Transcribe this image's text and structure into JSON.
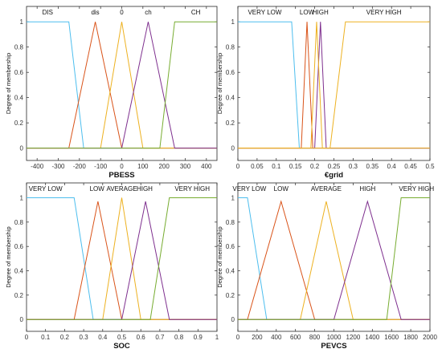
{
  "chart_data": [
    {
      "type": "line",
      "xlabel": "PBESS",
      "ylabel": "Degree of membership",
      "xlim": [
        -450,
        450
      ],
      "ylim": [
        0,
        1
      ],
      "xticks": [
        -400,
        -300,
        -200,
        -100,
        0,
        100,
        200,
        300,
        400
      ],
      "xtick_labels": [
        "-400",
        "-300",
        "-200",
        "-100",
        "0",
        "100",
        "200",
        "300",
        "400"
      ],
      "yticks": [
        0,
        0.2,
        0.4,
        0.6,
        0.8,
        1
      ],
      "ytick_labels": [
        "0",
        "0.2",
        "0.4",
        "0.6",
        "0.8",
        "1"
      ],
      "series": [
        {
          "name": "DIS",
          "color": "#4dbeee",
          "x": [
            -450,
            -250,
            -180
          ],
          "y": [
            1,
            1,
            0
          ],
          "label_x": -350
        },
        {
          "name": "dis",
          "color": "#d95319",
          "x": [
            -250,
            -125,
            0
          ],
          "y": [
            0,
            1,
            0
          ],
          "label_x": -125
        },
        {
          "name": "0",
          "color": "#edb120",
          "x": [
            -100,
            0,
            100
          ],
          "y": [
            0,
            1,
            0
          ],
          "label_x": 0
        },
        {
          "name": "ch",
          "color": "#7e2f8e",
          "x": [
            0,
            125,
            250
          ],
          "y": [
            0,
            1,
            0
          ],
          "label_x": 125
        },
        {
          "name": "CH",
          "color": "#77ac30",
          "x": [
            180,
            250,
            450
          ],
          "y": [
            0,
            1,
            1
          ],
          "label_x": 350
        }
      ]
    },
    {
      "type": "line",
      "xlabel": "€grid",
      "ylabel": "Degree of membership",
      "xlim": [
        0,
        0.5
      ],
      "ylim": [
        0,
        1
      ],
      "xticks": [
        0,
        0.05,
        0.1,
        0.15,
        0.2,
        0.25,
        0.3,
        0.35,
        0.4,
        0.45,
        0.5
      ],
      "xtick_labels": [
        "0",
        "0.05",
        "0.1",
        "0.15",
        "0.2",
        "0.25",
        "0.3",
        "0.35",
        "0.4",
        "0.45",
        "0.5"
      ],
      "yticks": [
        0,
        0.2,
        0.4,
        0.6,
        0.8,
        1
      ],
      "ytick_labels": [
        "0",
        "0.2",
        "0.4",
        "0.6",
        "0.8",
        "1"
      ],
      "series": [
        {
          "name": "VERY LOW",
          "color": "#4dbeee",
          "x": [
            0,
            0.14,
            0.16
          ],
          "y": [
            1,
            1,
            0
          ],
          "label_x": 0.07
        },
        {
          "name": "LOW",
          "color": "#d95319",
          "x": [
            0.165,
            0.18,
            0.195
          ],
          "y": [
            0,
            1,
            0
          ],
          "label_x": 0.18
        },
        {
          "name": "HIGH",
          "color": "#7e2f8e",
          "x": [
            0.2,
            0.215,
            0.23
          ],
          "y": [
            0,
            1,
            0
          ],
          "label_x": 0.215
        },
        {
          "name": "",
          "color": "#edb120",
          "x": [
            0.19,
            0.205,
            0.22
          ],
          "y": [
            0,
            1,
            0
          ],
          "label_x": 0.205
        },
        {
          "name": "VERY HIGH",
          "color": "#edb120",
          "x": [
            0.24,
            0.28,
            0.5
          ],
          "y": [
            0,
            1,
            1
          ],
          "label_x": 0.38
        }
      ]
    },
    {
      "type": "line",
      "xlabel": "SOC",
      "ylabel": "Degree of membership",
      "xlim": [
        0,
        1
      ],
      "ylim": [
        0,
        1
      ],
      "xticks": [
        0,
        0.1,
        0.2,
        0.3,
        0.4,
        0.5,
        0.6,
        0.7,
        0.8,
        0.9,
        1
      ],
      "xtick_labels": [
        "0",
        "0.1",
        "0.2",
        "0.3",
        "0.4",
        "0.5",
        "0.6",
        "0.7",
        "0.8",
        "0.9",
        "1"
      ],
      "yticks": [
        0,
        0.2,
        0.4,
        0.6,
        0.8,
        1
      ],
      "ytick_labels": [
        "0",
        "0.2",
        "0.4",
        "0.6",
        "0.8",
        "1"
      ],
      "series": [
        {
          "name": "VERY LOW",
          "color": "#4dbeee",
          "x": [
            0,
            0.25,
            0.35
          ],
          "y": [
            1,
            1,
            0
          ],
          "label_x": 0.1
        },
        {
          "name": "LOW",
          "color": "#d95319",
          "x": [
            0.25,
            0.375,
            0.5
          ],
          "y": [
            0,
            0.97,
            0
          ],
          "label_x": 0.37
        },
        {
          "name": "AVERAGE",
          "color": "#edb120",
          "x": [
            0.4,
            0.5,
            0.6
          ],
          "y": [
            0,
            1,
            0
          ],
          "label_x": 0.5
        },
        {
          "name": "HIGH",
          "color": "#7e2f8e",
          "x": [
            0.5,
            0.625,
            0.75
          ],
          "y": [
            0,
            0.97,
            0
          ],
          "label_x": 0.62
        },
        {
          "name": "VERY HIGH",
          "color": "#77ac30",
          "x": [
            0.65,
            0.75,
            1
          ],
          "y": [
            0,
            1,
            1
          ],
          "label_x": 0.87
        }
      ]
    },
    {
      "type": "line",
      "xlabel": "PEVCS",
      "ylabel": "Degree of membership",
      "xlim": [
        0,
        2000
      ],
      "ylim": [
        0,
        1
      ],
      "xticks": [
        0,
        200,
        400,
        600,
        800,
        1000,
        1200,
        1400,
        1600,
        1800,
        2000
      ],
      "xtick_labels": [
        "0",
        "200",
        "400",
        "600",
        "800",
        "1000",
        "1200",
        "1400",
        "1600",
        "1800",
        "2000"
      ],
      "yticks": [
        0,
        0.2,
        0.4,
        0.6,
        0.8,
        1
      ],
      "ytick_labels": [
        "0",
        "0.2",
        "0.4",
        "0.6",
        "0.8",
        "1"
      ],
      "series": [
        {
          "name": "VERY LOW",
          "color": "#4dbeee",
          "x": [
            0,
            100,
            300
          ],
          "y": [
            1,
            1,
            0
          ],
          "label_x": 120
        },
        {
          "name": "LOW",
          "color": "#d95319",
          "x": [
            100,
            450,
            800
          ],
          "y": [
            0,
            0.97,
            0
          ],
          "label_x": 450
        },
        {
          "name": "AVERAGE",
          "color": "#edb120",
          "x": [
            650,
            920,
            1200
          ],
          "y": [
            0,
            0.97,
            0
          ],
          "label_x": 920
        },
        {
          "name": "HIGH",
          "color": "#7e2f8e",
          "x": [
            1000,
            1350,
            1700
          ],
          "y": [
            0,
            0.97,
            0
          ],
          "label_x": 1350
        },
        {
          "name": "VERY HIGH",
          "color": "#77ac30",
          "x": [
            1550,
            1700,
            2000
          ],
          "y": [
            0,
            1,
            1
          ],
          "label_x": 1860
        }
      ]
    }
  ]
}
